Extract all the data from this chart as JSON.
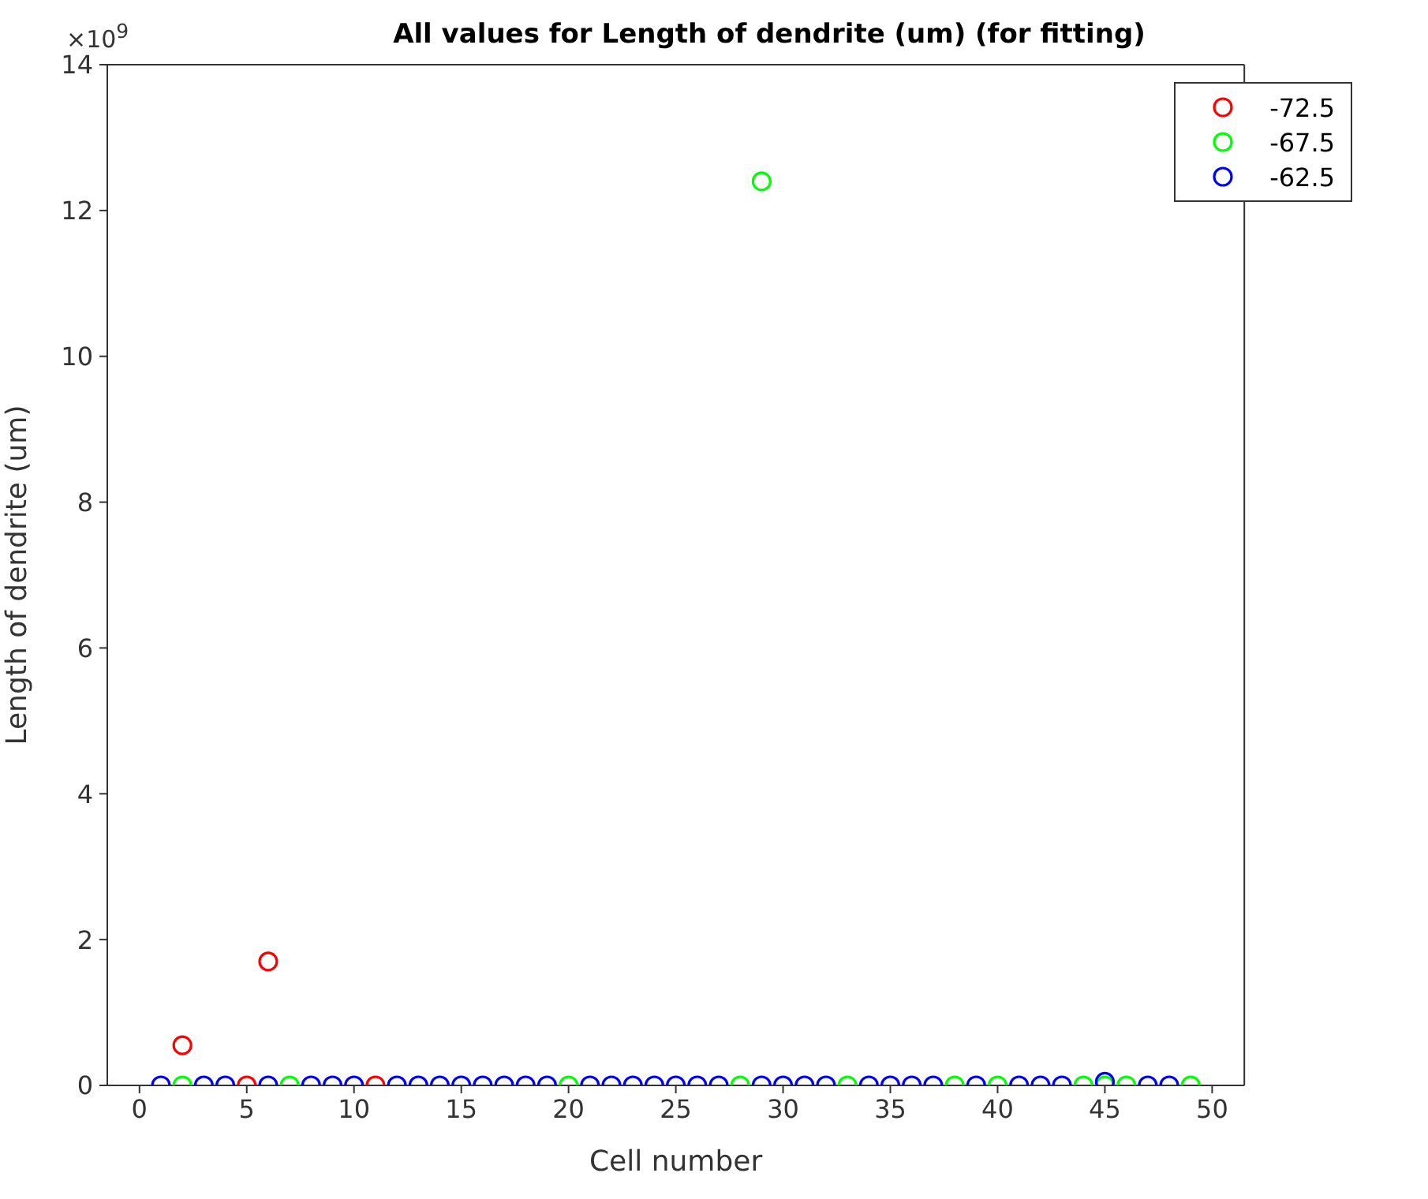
{
  "chart_data": {
    "type": "scatter",
    "title": "All values for Length of dendrite (um) (for fitting)",
    "xlabel": "Cell number",
    "ylabel": "Length of dendrite (um)",
    "annotations": [
      "×10$^{9}$"
    ],
    "marker": "circle",
    "legend": "top right",
    "grid": false,
    "xlim": [
      -1.5,
      51.5
    ],
    "xticks": [
      0,
      5,
      10,
      15,
      20,
      25,
      30,
      35,
      40,
      45,
      50
    ],
    "ylim": [
      0,
      14
    ],
    "yticks": [
      0,
      2,
      4,
      6,
      8,
      10,
      12,
      14
    ],
    "series": [
      {
        "name": "-72.5",
        "color": "#ff0000",
        "x": [
          2,
          5,
          6,
          11
        ],
        "values": [
          0.55,
          0,
          1.7,
          0
        ]
      },
      {
        "name": "-67.5",
        "color": "#00ff00",
        "x": [
          2,
          7,
          20,
          28,
          29,
          33,
          38,
          40,
          44,
          45,
          46,
          49
        ],
        "values": [
          0,
          0,
          0,
          0,
          12.4,
          0,
          0,
          0,
          0,
          0,
          0,
          0
        ]
      },
      {
        "name": "-62.5",
        "color": "#0000ff",
        "x": [
          1,
          3,
          4,
          6,
          8,
          9,
          10,
          12,
          13,
          14,
          15,
          16,
          17,
          18,
          19,
          21,
          22,
          23,
          24,
          25,
          26,
          27,
          29,
          30,
          31,
          32,
          34,
          35,
          36,
          37,
          39,
          41,
          42,
          43,
          45,
          47,
          48
        ],
        "values": [
          0,
          0,
          0,
          0,
          0,
          0,
          0,
          0,
          0,
          0,
          0,
          0,
          0,
          0,
          0,
          0,
          0,
          0,
          0,
          0,
          0,
          0,
          0,
          0,
          0,
          0,
          0,
          0,
          0,
          0,
          0,
          0,
          0,
          0,
          0.05,
          0,
          0
        ]
      }
    ]
  }
}
